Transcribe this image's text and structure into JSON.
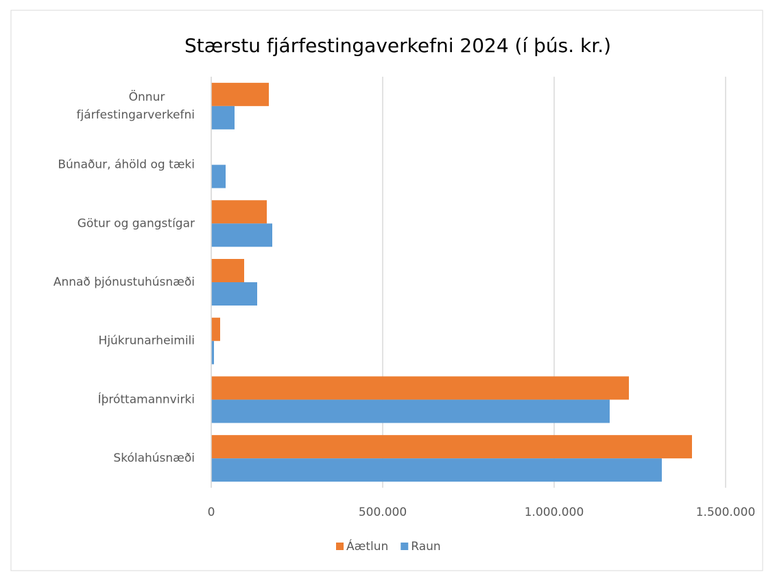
{
  "chart_data": {
    "type": "barh",
    "title": "Stærstu fjárfestingaverkefni 2024 (í þús. kr.)",
    "categories": [
      "Önnur fjárfestingarverkefni",
      "Búnaður, áhöld og tæki",
      "Götur og gangstígar",
      "Annað þjónustuhúsnæði",
      "Hjúkrunarheimili",
      "Íþróttamannvirki",
      "Skólahúsnæði"
    ],
    "series": [
      {
        "name": "Áætlun",
        "color": "#ed7d31",
        "values": [
          168000,
          0,
          162000,
          96000,
          26000,
          1218000,
          1402000
        ]
      },
      {
        "name": "Raun",
        "color": "#5b9bd5",
        "values": [
          68000,
          42000,
          178000,
          134000,
          8000,
          1162000,
          1314000
        ]
      }
    ],
    "xlim": [
      0,
      1500000
    ],
    "xticks": [
      0,
      {
        "value": 500000,
        "label": "500.000"
      },
      {
        "value": 1000000,
        "label": "1.000.000"
      },
      {
        "value": 1500000,
        "label": "1.500.000"
      }
    ],
    "grid": true,
    "legend": "bottom"
  }
}
